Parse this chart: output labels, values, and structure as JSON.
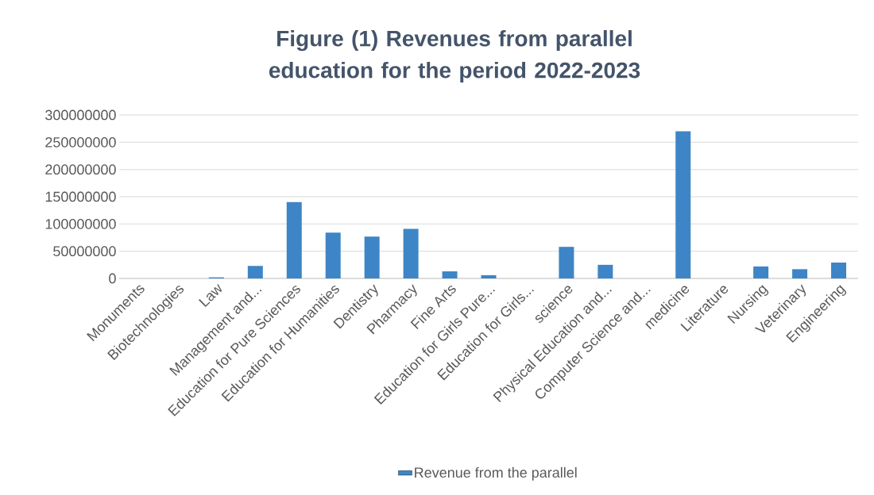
{
  "chart_data": {
    "type": "bar",
    "title": "Figure (1) Revenues from parallel education for the period 2022-2023",
    "categories": [
      "Monuments",
      "Biotechnologies",
      "Law",
      "Management and...",
      "Education for Pure Sciences",
      "Education for Humanities",
      "Dentistry",
      "Pharmacy",
      "Fine Arts",
      "Education for Girls Pure...",
      "Education for Girls...",
      "science",
      "Physical Education and...",
      "Computer Science and...",
      "medicine",
      "Literature",
      "Nursing",
      "Veterinary",
      "Engineering"
    ],
    "series": [
      {
        "name": "Revenue from the parallel",
        "color": "#3d85c6",
        "values": [
          0,
          0,
          2000000,
          23000000,
          140000000,
          84000000,
          77000000,
          91000000,
          13000000,
          6000000,
          0,
          58000000,
          25000000,
          0,
          270000000,
          0,
          22000000,
          17000000,
          29000000
        ]
      }
    ],
    "ylim": [
      0,
      300000000
    ],
    "yticks": [
      0,
      50000000,
      100000000,
      150000000,
      200000000,
      250000000,
      300000000
    ],
    "grid": "y",
    "legend": "bottom"
  }
}
